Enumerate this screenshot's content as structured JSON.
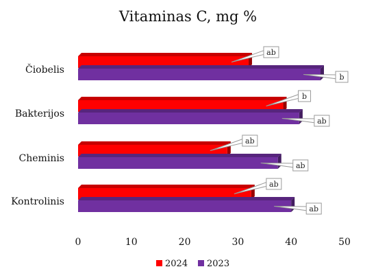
{
  "chart_data": {
    "type": "bar",
    "orientation": "horizontal",
    "style": "3d",
    "title": "Vitaminas C, mg %",
    "xlabel": "",
    "ylabel": "",
    "xlim": [
      0,
      50
    ],
    "ticks": [
      "0",
      "10",
      "20",
      "30",
      "40",
      "50"
    ],
    "grid": false,
    "legend_position": "bottom",
    "categories": [
      "Čiobelis",
      "Bakterijos",
      "Cheminis",
      "Kontrolinis"
    ],
    "series": [
      {
        "name": "2024",
        "color": "#ff0000",
        "values": [
          32,
          38.5,
          28,
          32.5
        ],
        "labels": [
          "ab",
          "b",
          "ab",
          "ab"
        ]
      },
      {
        "name": "2023",
        "color": "#7030a0",
        "values": [
          45.5,
          41.5,
          37.5,
          40
        ],
        "labels": [
          "b",
          "ab",
          "ab",
          "ab"
        ]
      }
    ]
  }
}
